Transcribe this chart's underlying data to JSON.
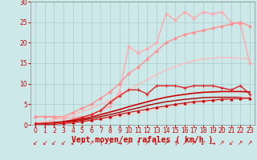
{
  "bg_color": "#cce8e8",
  "grid_color": "#aacccc",
  "xlabel": "Vent moyen/en rafales ( km/h )",
  "xlabel_color": "#cc0000",
  "xlabel_fontsize": 7,
  "tick_color": "#cc0000",
  "tick_fontsize": 5.5,
  "ylabel_ticks": [
    0,
    5,
    10,
    15,
    20,
    25,
    30
  ],
  "xlim": [
    -0.5,
    23.5
  ],
  "ylim": [
    0,
    30
  ],
  "x": [
    0,
    1,
    2,
    3,
    4,
    5,
    6,
    7,
    8,
    9,
    10,
    11,
    12,
    13,
    14,
    15,
    16,
    17,
    18,
    19,
    20,
    21,
    22,
    23
  ],
  "lines": [
    {
      "y": [
        2.0,
        2.0,
        1.8,
        1.5,
        1.8,
        2.0,
        2.5,
        3.5,
        4.5,
        8.0,
        19.0,
        17.5,
        18.5,
        20.0,
        27.0,
        25.5,
        27.5,
        26.0,
        27.5,
        27.0,
        27.5,
        25.0,
        24.5,
        15.0
      ],
      "color": "#ffaaaa",
      "marker": "o",
      "markersize": 2,
      "linewidth": 1.0
    },
    {
      "y": [
        2.0,
        2.0,
        2.0,
        2.0,
        3.0,
        4.0,
        5.0,
        6.5,
        8.0,
        10.0,
        12.5,
        14.0,
        16.0,
        18.0,
        20.0,
        21.0,
        22.0,
        22.5,
        23.0,
        23.5,
        24.0,
        24.5,
        25.0,
        24.0
      ],
      "color": "#ff9090",
      "marker": "o",
      "markersize": 2,
      "linewidth": 1.0
    },
    {
      "y": [
        0.5,
        0.8,
        1.2,
        1.8,
        2.5,
        3.2,
        4.0,
        5.0,
        6.0,
        7.2,
        8.5,
        9.8,
        11.0,
        12.2,
        13.3,
        14.2,
        15.0,
        15.6,
        16.0,
        16.2,
        16.4,
        16.3,
        16.2,
        16.0
      ],
      "color": "#ffbbbb",
      "marker": null,
      "markersize": 0,
      "linewidth": 1.0
    },
    {
      "y": [
        0.3,
        0.4,
        0.6,
        0.8,
        1.2,
        1.8,
        2.5,
        3.5,
        5.5,
        7.0,
        8.5,
        8.5,
        7.5,
        9.5,
        9.5,
        9.5,
        9.0,
        9.5,
        9.5,
        9.5,
        9.0,
        8.5,
        9.5,
        7.5
      ],
      "color": "#dd2222",
      "marker": "+",
      "markersize": 3.5,
      "linewidth": 1.0
    },
    {
      "y": [
        0.1,
        0.2,
        0.4,
        0.7,
        1.0,
        1.4,
        1.9,
        2.5,
        3.1,
        3.7,
        4.4,
        5.0,
        5.6,
        6.2,
        6.7,
        7.1,
        7.4,
        7.7,
        7.9,
        8.0,
        8.1,
        8.1,
        8.1,
        8.0
      ],
      "color": "#cc0000",
      "marker": null,
      "markersize": 0,
      "linewidth": 1.2
    },
    {
      "y": [
        0.05,
        0.15,
        0.3,
        0.5,
        0.8,
        1.1,
        1.5,
        2.0,
        2.5,
        3.0,
        3.6,
        4.1,
        4.7,
        5.2,
        5.6,
        5.9,
        6.2,
        6.4,
        6.6,
        6.7,
        6.7,
        6.7,
        6.7,
        6.6
      ],
      "color": "#aa0000",
      "marker": null,
      "markersize": 0,
      "linewidth": 1.0
    },
    {
      "y": [
        0.0,
        0.1,
        0.25,
        0.4,
        0.6,
        0.85,
        1.1,
        1.4,
        1.7,
        2.1,
        2.5,
        2.9,
        3.3,
        3.7,
        4.1,
        4.5,
        4.9,
        5.3,
        5.6,
        5.9,
        6.2,
        6.4,
        6.6,
        6.8
      ],
      "color": "#ffcccc",
      "marker": null,
      "markersize": 0,
      "linewidth": 0.8
    },
    {
      "y": [
        0.0,
        0.05,
        0.15,
        0.3,
        0.5,
        0.8,
        1.1,
        1.5,
        2.0,
        2.5,
        3.0,
        3.4,
        3.8,
        4.2,
        4.6,
        5.0,
        5.3,
        5.6,
        5.8,
        6.0,
        6.2,
        6.3,
        6.4,
        6.5
      ],
      "color": "#cc0000",
      "marker": "^",
      "markersize": 2,
      "linewidth": 0.8
    }
  ],
  "wind_arrow_chars": [
    "↙",
    "↙",
    "↙",
    "↙",
    "↙",
    "↗",
    "↗",
    "↑",
    "↗",
    "→",
    "↗",
    "↑",
    "↗",
    "↙",
    "↗",
    "↑",
    "↗",
    "↗",
    "↙",
    "→",
    "↗",
    "↙",
    "↗",
    "↗"
  ],
  "arrow_color": "#cc0000",
  "arrow_fontsize": 5.5
}
